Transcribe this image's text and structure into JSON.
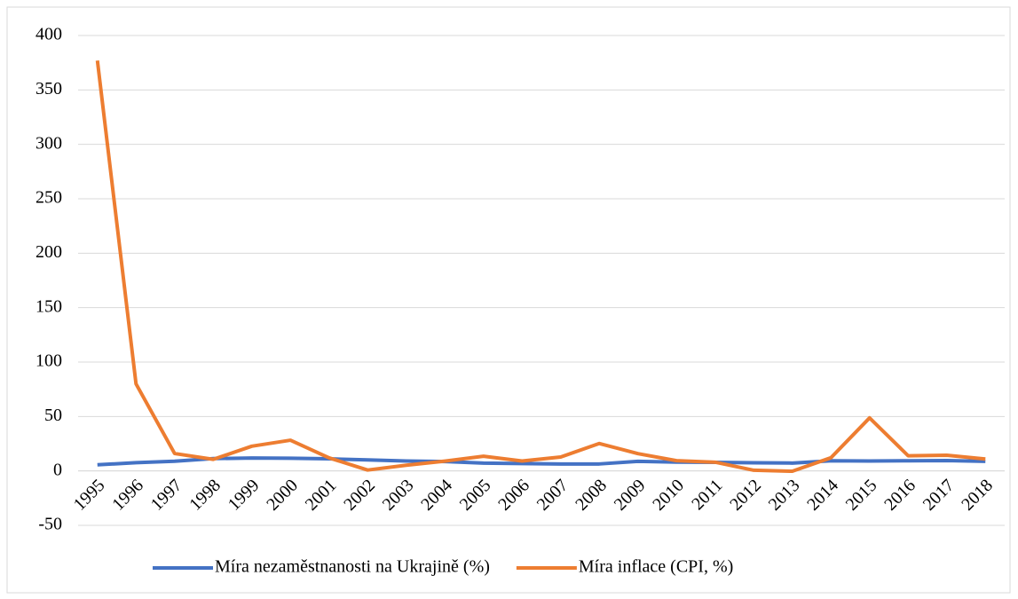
{
  "chart_data": {
    "type": "line",
    "categories": [
      "1995",
      "1996",
      "1997",
      "1998",
      "1999",
      "2000",
      "2001",
      "2002",
      "2003",
      "2004",
      "2005",
      "2006",
      "2007",
      "2008",
      "2009",
      "2010",
      "2011",
      "2012",
      "2013",
      "2014",
      "2015",
      "2016",
      "2017",
      "2018"
    ],
    "series": [
      {
        "name": "Míra nezaměstnanosti na Ukrajině (%)",
        "color": "#4472c4",
        "values": [
          5.6,
          7.6,
          8.9,
          11.3,
          11.9,
          11.7,
          11.1,
          10.1,
          9.1,
          8.6,
          7.2,
          6.8,
          6.4,
          6.4,
          8.8,
          8.1,
          7.9,
          7.5,
          7.2,
          9.3,
          9.1,
          9.3,
          9.5,
          8.8
        ]
      },
      {
        "name": "Míra inflace (CPI, %)",
        "color": "#ed7d31",
        "values": [
          377,
          80,
          16,
          10.6,
          22.7,
          28.2,
          12,
          0.8,
          5.2,
          9,
          13.5,
          9.1,
          12.8,
          25.2,
          15.9,
          9.4,
          8,
          0.6,
          -0.3,
          12.1,
          48.7,
          13.9,
          14.4,
          10.9
        ]
      }
    ],
    "ylim": [
      -50,
      400
    ],
    "yticks": [
      -50,
      0,
      50,
      100,
      150,
      200,
      250,
      300,
      350,
      400
    ],
    "grid": true,
    "legend": "bottom"
  }
}
